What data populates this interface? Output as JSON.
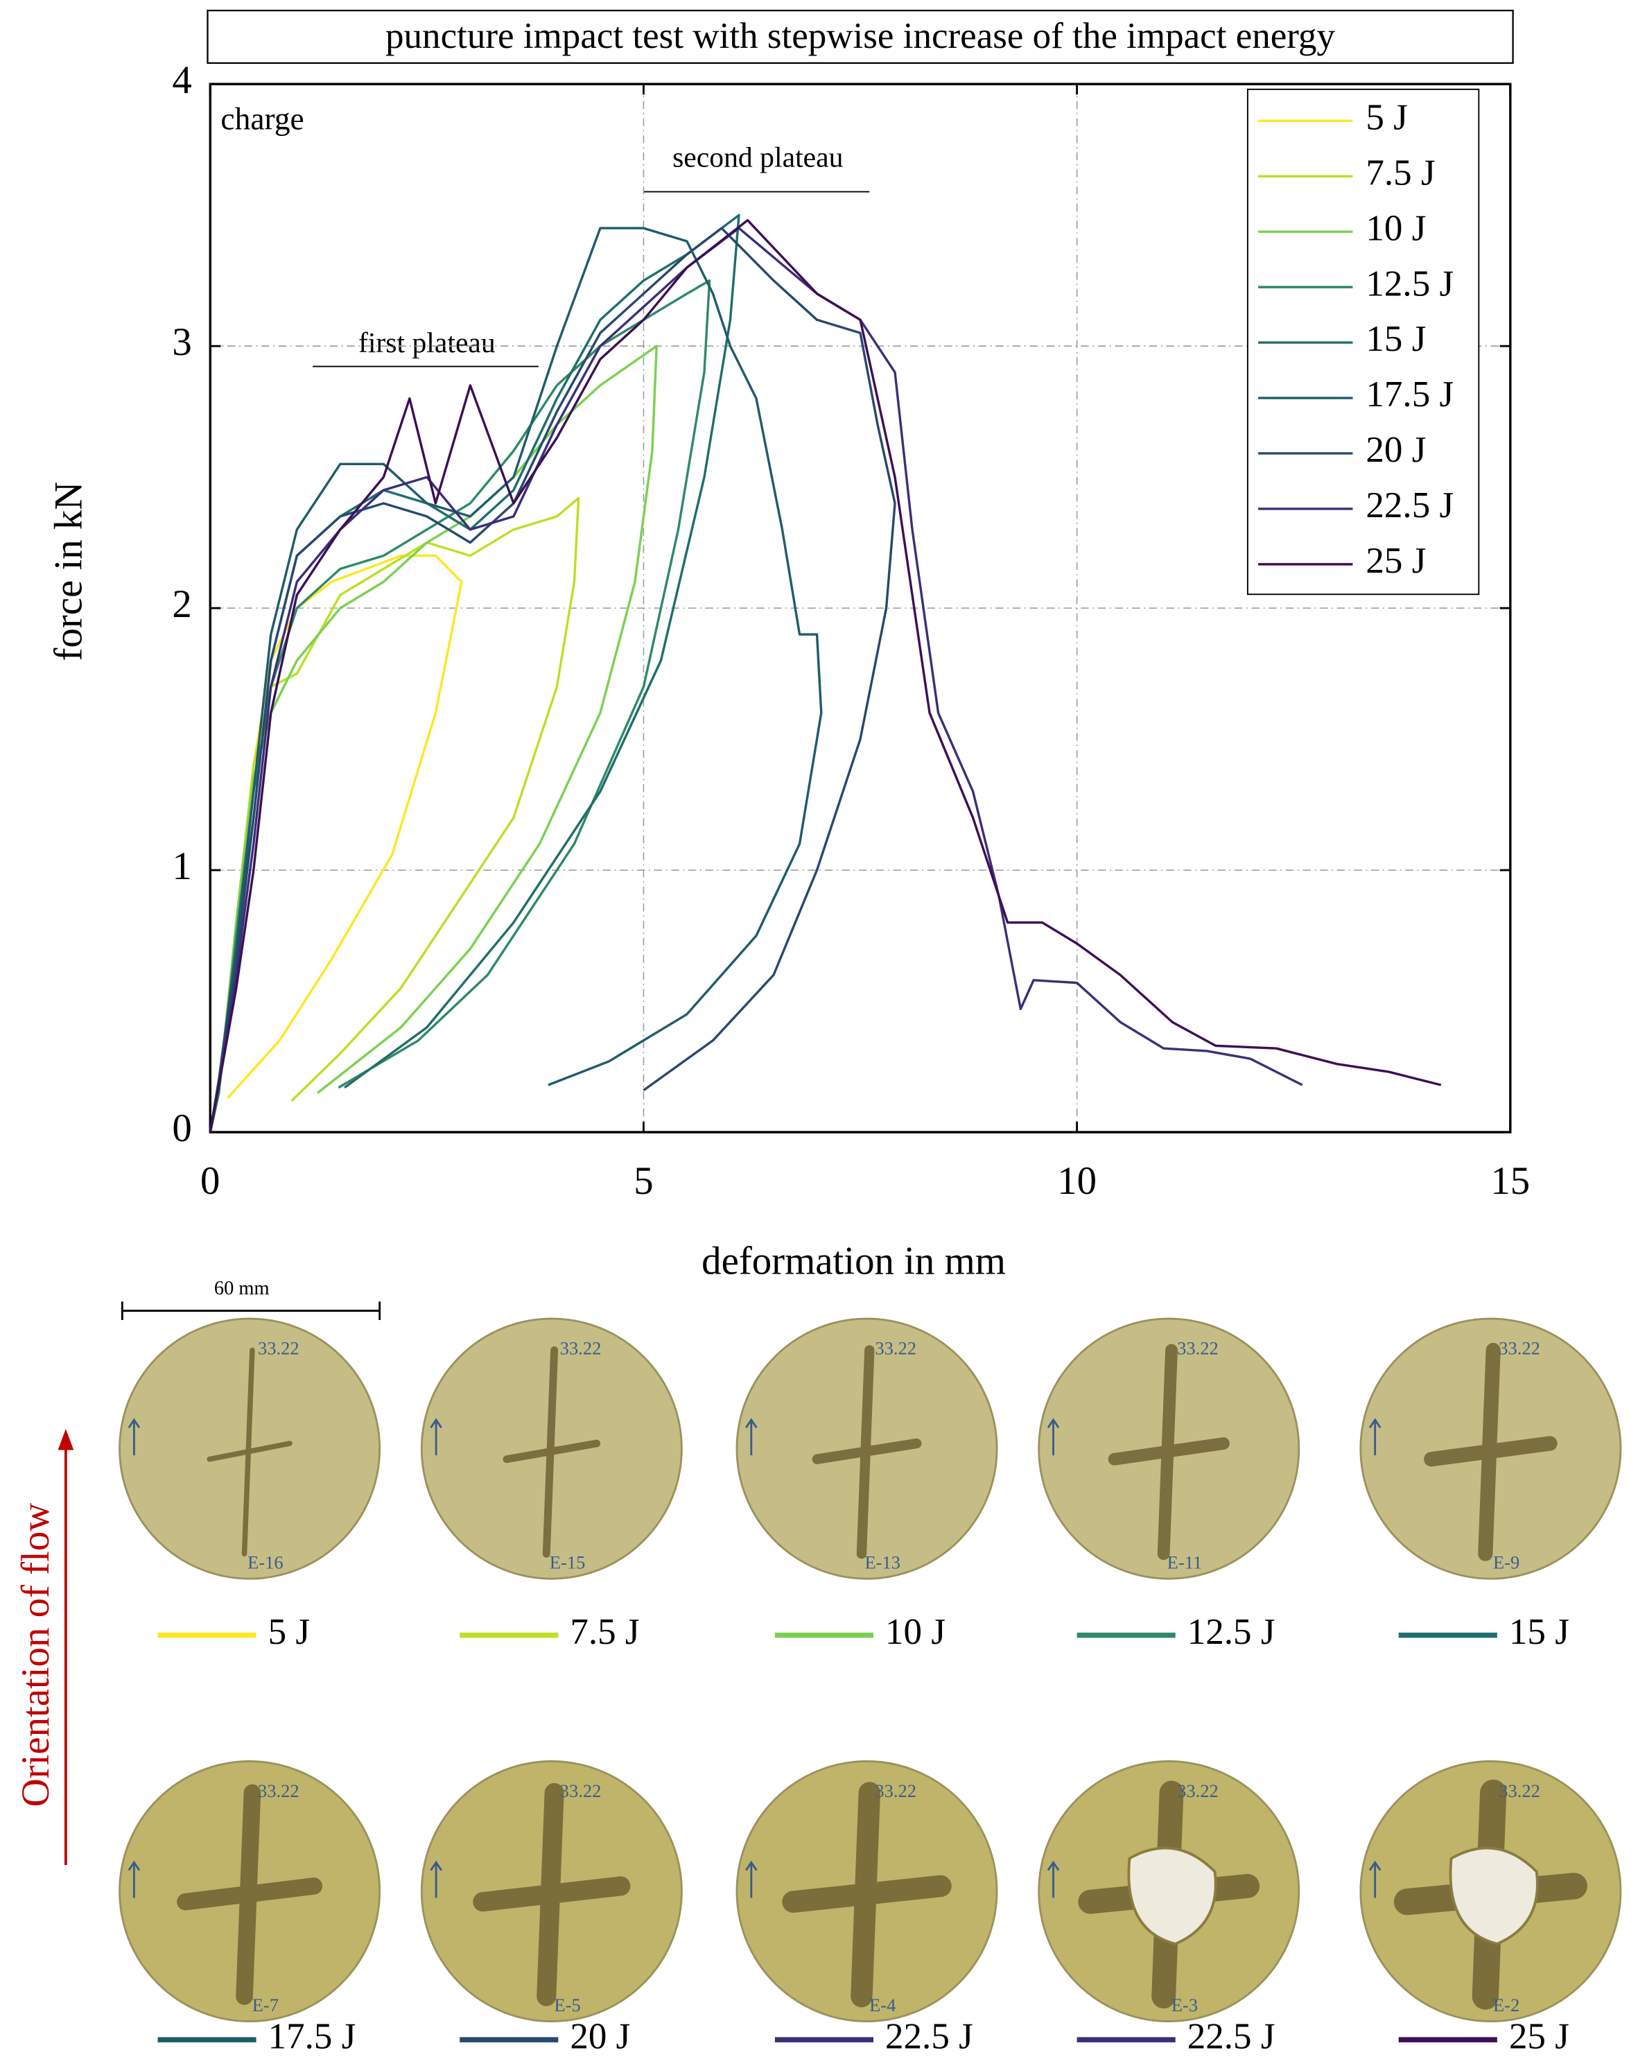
{
  "chart_data": {
    "type": "line",
    "title": "puncture impact test with stepwise increase of the impact energy",
    "x_label": "deformation in mm",
    "y_label": "force in kN",
    "annotations": {
      "charge": "charge",
      "first_plateau": "first plateau",
      "second_plateau": "second plateau"
    },
    "xlim": [
      0,
      15
    ],
    "ylim": [
      0,
      4
    ],
    "xticks": [
      0,
      5,
      10,
      15
    ],
    "yticks": [
      0,
      1,
      2,
      3,
      4
    ],
    "grid": true,
    "legend": "upper right",
    "series": [
      {
        "name": "5 J",
        "color": "#fde725",
        "x": [
          0,
          0.1,
          0.3,
          0.5,
          0.7,
          1.0,
          1.4,
          1.8,
          2.2,
          2.6,
          2.9,
          2.6,
          2.1,
          1.4,
          0.8,
          0.2
        ],
        "values": [
          0,
          0.15,
          0.8,
          1.4,
          1.8,
          2.0,
          2.1,
          2.15,
          2.2,
          2.2,
          2.1,
          1.6,
          1.06,
          0.66,
          0.35,
          0.13
        ]
      },
      {
        "name": "7.5 J",
        "color": "#bddf26",
        "x": [
          0,
          0.1,
          0.3,
          0.5,
          0.7,
          1.0,
          1.5,
          2.0,
          2.5,
          3.0,
          3.5,
          4.0,
          4.25,
          4.2,
          4.0,
          3.5,
          2.9,
          2.2,
          1.5,
          0.94
        ],
        "values": [
          0,
          0.15,
          0.8,
          1.4,
          1.7,
          1.75,
          2.05,
          2.15,
          2.25,
          2.2,
          2.3,
          2.35,
          2.42,
          2.1,
          1.7,
          1.2,
          0.9,
          0.55,
          0.3,
          0.12
        ]
      },
      {
        "name": "10 J",
        "color": "#7ad151",
        "x": [
          0,
          0.1,
          0.3,
          0.5,
          0.7,
          1.0,
          1.5,
          2.0,
          2.5,
          3.0,
          3.5,
          4.0,
          4.5,
          5.15,
          5.1,
          4.9,
          4.5,
          3.8,
          3.0,
          2.2,
          1.24
        ],
        "values": [
          0,
          0.15,
          0.8,
          1.35,
          1.6,
          1.8,
          2.0,
          2.1,
          2.25,
          2.35,
          2.5,
          2.7,
          2.85,
          3.0,
          2.6,
          2.1,
          1.6,
          1.1,
          0.7,
          0.4,
          0.15
        ]
      },
      {
        "name": "12.5 J",
        "color": "#2e8a68",
        "x": [
          0,
          0.1,
          0.3,
          0.5,
          0.7,
          1.0,
          1.5,
          2.0,
          2.5,
          3.0,
          3.5,
          4.0,
          4.5,
          5.0,
          5.5,
          5.76,
          5.7,
          5.4,
          5.0,
          4.2,
          3.2,
          2.4,
          1.48
        ],
        "values": [
          0,
          0.15,
          0.75,
          1.3,
          1.7,
          2.0,
          2.15,
          2.2,
          2.3,
          2.4,
          2.6,
          2.85,
          3.0,
          3.1,
          3.2,
          3.25,
          2.9,
          2.3,
          1.7,
          1.1,
          0.6,
          0.35,
          0.17
        ]
      },
      {
        "name": "15 J",
        "color": "#1f6e6b",
        "x": [
          0,
          0.1,
          0.3,
          0.5,
          0.7,
          1.0,
          1.5,
          2.0,
          2.5,
          3.0,
          3.5,
          4.0,
          4.5,
          5.0,
          5.5,
          6.1,
          6.0,
          5.7,
          5.2,
          4.5,
          3.5,
          2.5,
          1.55
        ],
        "values": [
          0,
          0.2,
          0.7,
          1.2,
          1.8,
          2.2,
          2.35,
          2.45,
          2.4,
          2.3,
          2.45,
          2.8,
          3.1,
          3.25,
          3.35,
          3.5,
          3.1,
          2.5,
          1.8,
          1.3,
          0.8,
          0.4,
          0.17
        ]
      },
      {
        "name": "17.5 J",
        "color": "#1f5c6b",
        "x": [
          0,
          0.1,
          0.3,
          0.5,
          0.7,
          1.0,
          1.5,
          2.0,
          2.5,
          3.0,
          3.5,
          4.0,
          4.5,
          5.0,
          5.5,
          5.8,
          6.0,
          6.3,
          6.6,
          6.8,
          7.0,
          7.05,
          6.8,
          6.3,
          5.5,
          4.6,
          3.9
        ],
        "values": [
          0,
          0.2,
          0.7,
          1.3,
          1.9,
          2.3,
          2.55,
          2.55,
          2.4,
          2.35,
          2.5,
          3.0,
          3.45,
          3.45,
          3.4,
          3.2,
          3.0,
          2.8,
          2.3,
          1.9,
          1.9,
          1.6,
          1.1,
          0.75,
          0.45,
          0.27,
          0.18
        ]
      },
      {
        "name": "20 J",
        "color": "#27496e",
        "x": [
          0,
          0.1,
          0.3,
          0.5,
          0.7,
          1.0,
          1.5,
          2.0,
          2.5,
          3.0,
          3.5,
          4.0,
          4.5,
          5.0,
          5.5,
          5.9,
          6.5,
          7.0,
          7.5,
          7.7,
          7.9,
          7.8,
          7.5,
          7.0,
          6.5,
          5.8,
          5.0
        ],
        "values": [
          0,
          0.2,
          0.65,
          1.2,
          1.8,
          2.2,
          2.35,
          2.4,
          2.35,
          2.25,
          2.4,
          2.75,
          3.05,
          3.2,
          3.35,
          3.45,
          3.25,
          3.1,
          3.05,
          2.7,
          2.4,
          2.0,
          1.5,
          1.0,
          0.6,
          0.35,
          0.16
        ]
      },
      {
        "name": "22.5 J",
        "color": "#3b2f78",
        "x": [
          0,
          0.1,
          0.3,
          0.5,
          0.7,
          1.0,
          1.5,
          2.0,
          2.5,
          3.0,
          3.5,
          4.0,
          4.5,
          5.0,
          5.5,
          6.1,
          7.0,
          7.5,
          7.9,
          8.1,
          8.4,
          8.8,
          9.1,
          9.35,
          9.5,
          10.0,
          10.5,
          11.0,
          11.5,
          12.0,
          12.6
        ],
        "values": [
          0,
          0.18,
          0.6,
          1.1,
          1.7,
          2.1,
          2.3,
          2.45,
          2.5,
          2.3,
          2.35,
          2.7,
          3.0,
          3.15,
          3.3,
          3.45,
          3.2,
          3.1,
          2.9,
          2.3,
          1.6,
          1.3,
          0.9,
          0.47,
          0.58,
          0.57,
          0.42,
          0.32,
          0.31,
          0.28,
          0.18
        ]
      },
      {
        "name": "25 J",
        "color": "#3d0f55",
        "x": [
          0,
          0.1,
          0.3,
          0.5,
          0.7,
          1.0,
          1.5,
          2.0,
          2.3,
          2.6,
          3.0,
          3.5,
          4.0,
          4.5,
          5.0,
          5.5,
          6.2,
          7.0,
          7.5,
          7.9,
          8.3,
          8.8,
          9.2,
          9.6,
          10.0,
          10.5,
          11.1,
          11.6,
          12.3,
          13.0,
          13.6,
          14.2
        ],
        "values": [
          0,
          0.18,
          0.55,
          1.0,
          1.6,
          2.05,
          2.3,
          2.5,
          2.8,
          2.4,
          2.85,
          2.4,
          2.65,
          2.95,
          3.1,
          3.3,
          3.48,
          3.2,
          3.1,
          2.5,
          1.6,
          1.2,
          0.8,
          0.8,
          0.72,
          0.6,
          0.42,
          0.33,
          0.32,
          0.26,
          0.23,
          0.18
        ]
      }
    ]
  },
  "figure": {
    "scale_bar": "60 mm",
    "flow_label": "Orientation of flow",
    "photos": [
      {
        "label": "5 J",
        "color": "#fde725",
        "code": "33.22",
        "sample": "E-16"
      },
      {
        "label": "7.5 J",
        "color": "#bddf26",
        "code": "33.22",
        "sample": "E-15"
      },
      {
        "label": "10 J",
        "color": "#7ad151",
        "code": "33.22",
        "sample": "E-13"
      },
      {
        "label": "12.5 J",
        "color": "#2e8a68",
        "code": "33.22",
        "sample": "E-11"
      },
      {
        "label": "15 J",
        "color": "#1f6e6b",
        "code": "33.22",
        "sample": "E-9"
      },
      {
        "label": "17.5 J",
        "color": "#1f5c6b",
        "code": "33.22",
        "sample": "E-7"
      },
      {
        "label": "20 J",
        "color": "#27496e",
        "code": "33.22",
        "sample": "E-5"
      },
      {
        "label": "22.5 J",
        "color": "#3b2f78",
        "code": "33.22",
        "sample": "E-4"
      },
      {
        "label": "22.5 J",
        "color": "#3b2f78",
        "code": "33.22",
        "sample": "E-3"
      },
      {
        "label": "25 J",
        "color": "#3d0f55",
        "code": "33.22",
        "sample": "E-2"
      }
    ]
  }
}
